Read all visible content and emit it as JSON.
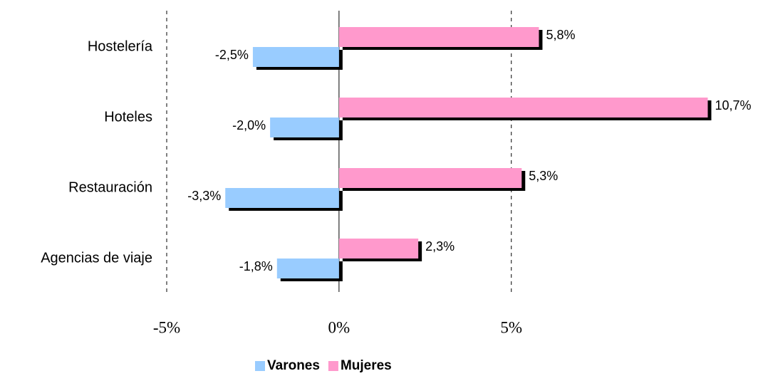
{
  "chart_data": {
    "type": "barh",
    "categories": [
      "Hostelería",
      "Hoteles",
      "Restauración",
      "Agencias de viaje"
    ],
    "series": [
      {
        "name": "Varones",
        "color": "#99ccff",
        "values": [
          -2.5,
          -2.0,
          -3.3,
          -1.8
        ],
        "value_labels": [
          "-2,5%",
          "-2,0%",
          "-3,3%",
          "-1,8%"
        ]
      },
      {
        "name": "Mujeres",
        "color": "#ff99cc",
        "values": [
          5.8,
          10.7,
          5.3,
          2.3
        ],
        "value_labels": [
          "5,8%",
          "10,7%",
          "5,3%",
          "2,3%"
        ]
      }
    ],
    "xlim": [
      -5,
      11
    ],
    "xticks": [
      {
        "value": -5,
        "label": "-5%"
      },
      {
        "value": 0,
        "label": "0%"
      },
      {
        "value": 5,
        "label": "5%"
      }
    ],
    "grid": true,
    "legend": "bottom"
  }
}
